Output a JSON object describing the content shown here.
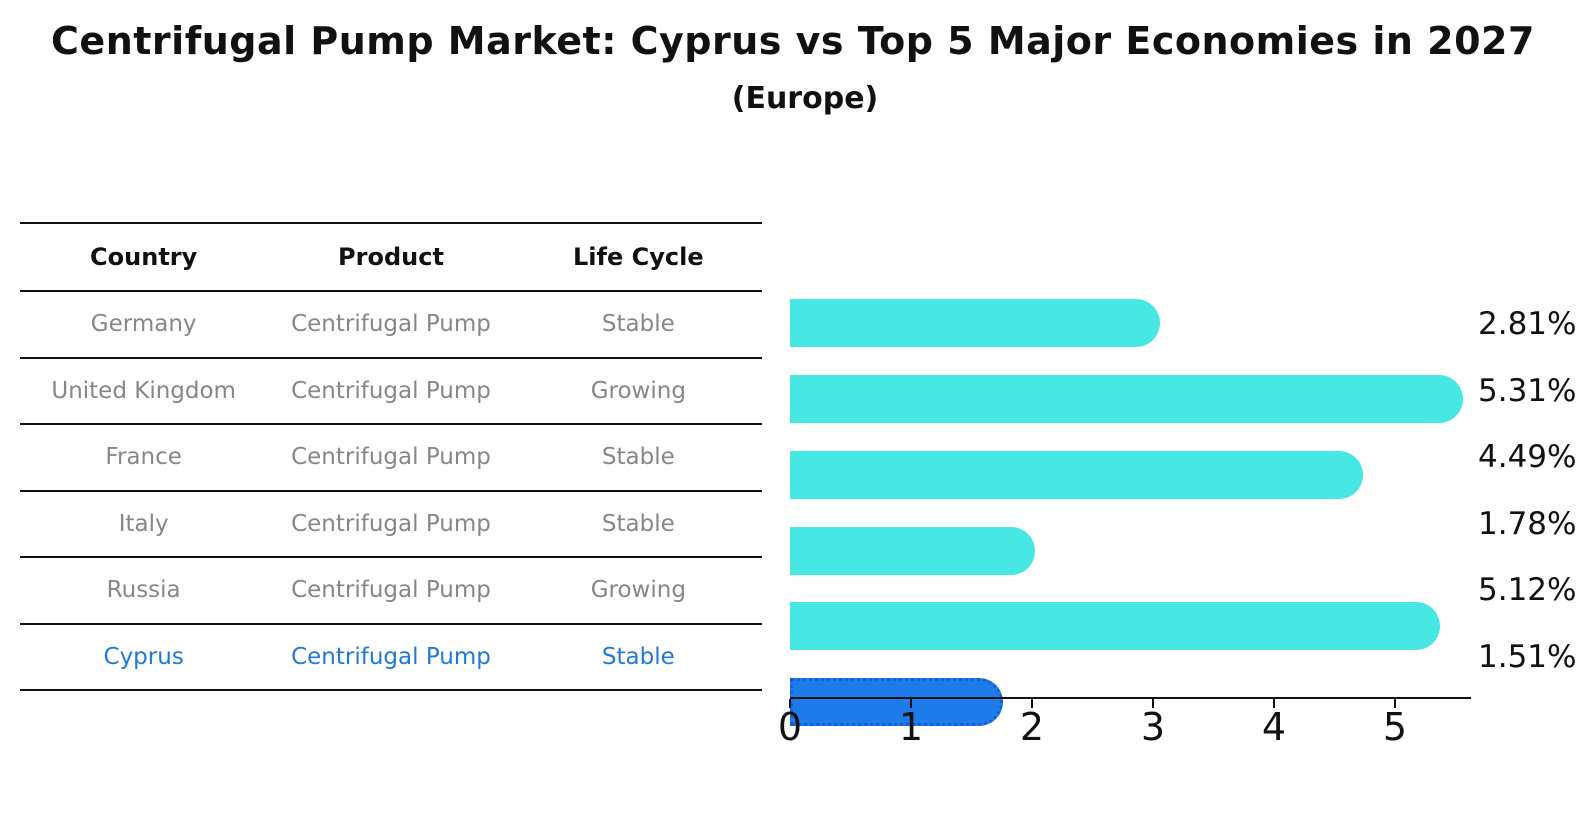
{
  "title": "Centrifugal Pump Market: Cyprus vs Top 5 Major Economies in 2027",
  "subtitle": "(Europe)",
  "table": {
    "headers": [
      "Country",
      "Product",
      "Life Cycle"
    ],
    "rows": [
      {
        "country": "Germany",
        "product": "Centrifugal Pump",
        "life_cycle": "Stable",
        "highlight": false
      },
      {
        "country": "United Kingdom",
        "product": "Centrifugal Pump",
        "life_cycle": "Growing",
        "highlight": false
      },
      {
        "country": "France",
        "product": "Centrifugal Pump",
        "life_cycle": "Stable",
        "highlight": false
      },
      {
        "country": "Italy",
        "product": "Centrifugal Pump",
        "life_cycle": "Stable",
        "highlight": false
      },
      {
        "country": "Russia",
        "product": "Centrifugal Pump",
        "life_cycle": "Growing",
        "highlight": false
      },
      {
        "country": "Cyprus",
        "product": "Centrifugal Pump",
        "life_cycle": "Stable",
        "highlight": true
      }
    ]
  },
  "chart_data": {
    "type": "bar",
    "orientation": "horizontal",
    "title": "Centrifugal Pump Market: Cyprus vs Top 5 Major Economies in 2027",
    "subtitle": "(Europe)",
    "categories": [
      "Germany",
      "United Kingdom",
      "France",
      "Italy",
      "Russia",
      "Cyprus"
    ],
    "values": [
      2.81,
      5.31,
      4.49,
      1.78,
      5.12,
      1.51
    ],
    "value_labels": [
      "2.81%",
      "5.31%",
      "4.49%",
      "1.78%",
      "5.12%",
      "1.51%"
    ],
    "xlabel": "",
    "ylabel": "",
    "xlim": [
      0,
      5.62
    ],
    "xticks": [
      "0",
      "1",
      "2",
      "3",
      "4",
      "5"
    ],
    "grid": false,
    "legend": false,
    "highlight_index": 5,
    "bar_color": "#47E7E3",
    "highlight_bar_color": "#1E7BEA",
    "highlight_border_color": "#1362D2",
    "highlight_text_color": "#1F7AD9",
    "text_color": "#111111",
    "muted_text_color": "#878787"
  }
}
